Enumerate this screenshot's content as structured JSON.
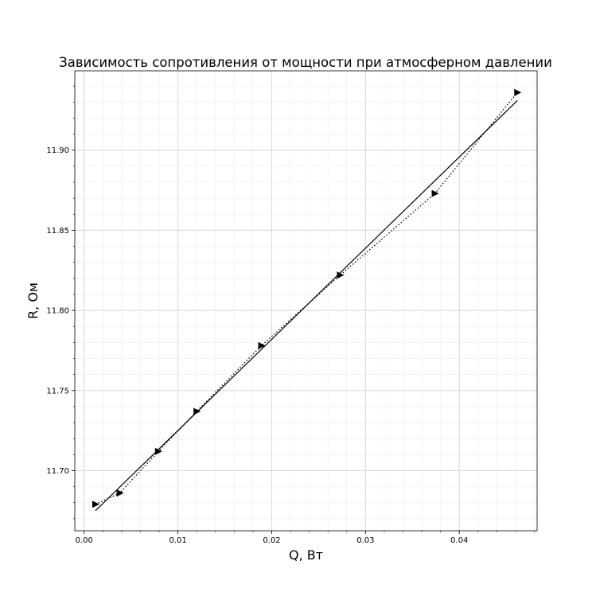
{
  "chart_data": {
    "type": "line",
    "title": "Зависимость сопротивления от мощности при атмосферном давлении",
    "xlabel": "Q, Вт",
    "ylabel": "R, Ом",
    "xlim": [
      -0.001,
      0.0483
    ],
    "ylim": [
      11.6625,
      11.9495
    ],
    "xticks": [
      0.0,
      0.01,
      0.02,
      0.03,
      0.04
    ],
    "xtick_labels": [
      "0.00",
      "0.01",
      "0.02",
      "0.03",
      "0.04"
    ],
    "yticks": [
      11.7,
      11.75,
      11.8,
      11.85,
      11.9
    ],
    "ytick_labels": [
      "11.70",
      "11.75",
      "11.80",
      "11.85",
      "11.90"
    ],
    "grid": true,
    "minor_grid": true,
    "series": [
      {
        "style": "dotted",
        "marker": "triangle-right",
        "color": "#000000",
        "x": [
          0.0012,
          0.0038,
          0.0079,
          0.012,
          0.0189,
          0.0273,
          0.0374,
          0.0462
        ],
        "y": [
          11.679,
          11.686,
          11.712,
          11.737,
          11.778,
          11.822,
          11.873,
          11.936
        ]
      },
      {
        "style": "solid",
        "marker": "none",
        "color": "#000000",
        "x": [
          0.0012,
          0.0462
        ],
        "y": [
          11.675,
          11.931
        ]
      }
    ]
  }
}
